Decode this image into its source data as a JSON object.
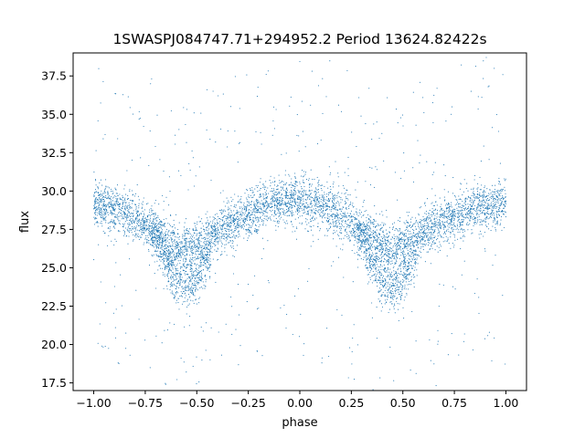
{
  "chart_data": {
    "type": "scatter",
    "title": "1SWASPJ084747.71+294952.2 Period 13624.82422s",
    "xlabel": "phase",
    "ylabel": "flux",
    "xlim": [
      -1.1,
      1.1
    ],
    "ylim": [
      17.0,
      39.0
    ],
    "x_ticks": [
      -1.0,
      -0.75,
      -0.5,
      -0.25,
      0.0,
      0.25,
      0.5,
      0.75,
      1.0
    ],
    "x_tick_labels": [
      "−1.00",
      "−0.75",
      "−0.50",
      "−0.25",
      "0.00",
      "0.25",
      "0.50",
      "0.75",
      "1.00"
    ],
    "y_ticks": [
      17.5,
      20.0,
      22.5,
      25.0,
      27.5,
      30.0,
      32.5,
      35.0,
      37.5
    ],
    "y_tick_labels": [
      "17.5",
      "20.0",
      "22.5",
      "25.0",
      "27.5",
      "30.0",
      "32.5",
      "35.0",
      "37.5"
    ],
    "grid": false,
    "point_color": "#1f77b4",
    "x_range": [
      -1.0,
      1.0
    ],
    "series": [
      {
        "x": [
          -1.0,
          -0.9,
          -0.8,
          -0.7,
          -0.6,
          -0.55,
          -0.5,
          -0.4,
          -0.3,
          -0.2,
          -0.1,
          0.0,
          0.1,
          0.2,
          0.3,
          0.4,
          0.45,
          0.5,
          0.6,
          0.7,
          0.8,
          0.9,
          1.0
        ],
        "y": [
          29.2,
          28.8,
          28.2,
          27.3,
          26.4,
          26.2,
          26.4,
          27.3,
          28.0,
          28.8,
          29.3,
          29.5,
          29.0,
          28.4,
          27.6,
          26.5,
          26.2,
          26.5,
          27.3,
          28.0,
          28.7,
          29.0,
          29.2
        ]
      },
      {
        "x": [
          -0.7,
          -0.65,
          -0.6,
          -0.55,
          -0.5,
          -0.45,
          0.3,
          0.35,
          0.4,
          0.45,
          0.5,
          0.55
        ],
        "y": [
          27.2,
          25.5,
          24.2,
          23.8,
          24.2,
          25.6,
          27.0,
          25.2,
          24.0,
          23.8,
          24.2,
          25.5
        ]
      }
    ]
  }
}
